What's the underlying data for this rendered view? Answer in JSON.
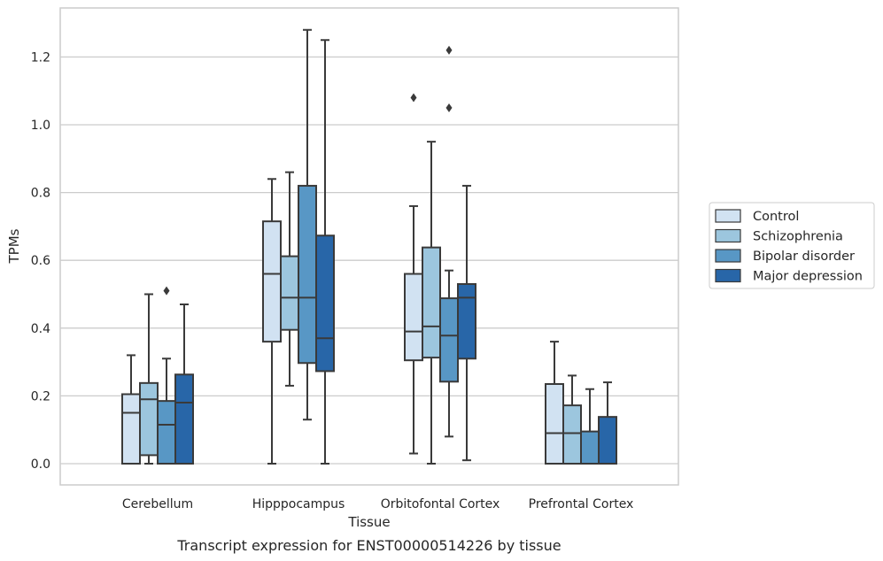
{
  "caption": "Transcript expression for ENST00000514226 by tissue",
  "chart_data": {
    "type": "boxplot",
    "xlabel": "Tissue",
    "ylabel": "TPMs",
    "ylim": [
      -0.06,
      1.35
    ],
    "yticks": [
      "0.0",
      "0.2",
      "0.4",
      "0.6",
      "0.8",
      "1.0",
      "1.2"
    ],
    "grid": true,
    "legend_position": "right",
    "categories": [
      "Cerebellum",
      "Hipppocampus",
      "Orbitofontal Cortex",
      "Prefrontal Cortex"
    ],
    "series": [
      {
        "name": "Control",
        "color": "#d1e2f2",
        "boxes": [
          {
            "whisker_low": 0.0,
            "q1": 0.0,
            "median": 0.15,
            "q3": 0.205,
            "whisker_high": 0.32,
            "outliers": []
          },
          {
            "whisker_low": 0.0,
            "q1": 0.36,
            "median": 0.56,
            "q3": 0.715,
            "whisker_high": 0.84,
            "outliers": []
          },
          {
            "whisker_low": 0.03,
            "q1": 0.305,
            "median": 0.39,
            "q3": 0.56,
            "whisker_high": 0.76,
            "outliers": [
              1.08
            ]
          },
          {
            "whisker_low": 0.0,
            "q1": 0.0,
            "median": 0.09,
            "q3": 0.235,
            "whisker_high": 0.36,
            "outliers": []
          }
        ]
      },
      {
        "name": "Schizophrenia",
        "color": "#9cc6de",
        "boxes": [
          {
            "whisker_low": 0.0,
            "q1": 0.025,
            "median": 0.19,
            "q3": 0.238,
            "whisker_high": 0.5,
            "outliers": []
          },
          {
            "whisker_low": 0.23,
            "q1": 0.395,
            "median": 0.49,
            "q3": 0.612,
            "whisker_high": 0.86,
            "outliers": []
          },
          {
            "whisker_low": 0.0,
            "q1": 0.313,
            "median": 0.405,
            "q3": 0.638,
            "whisker_high": 0.95,
            "outliers": []
          },
          {
            "whisker_low": 0.0,
            "q1": 0.0,
            "median": 0.09,
            "q3": 0.172,
            "whisker_high": 0.26,
            "outliers": []
          }
        ]
      },
      {
        "name": "Bipolar disorder",
        "color": "#5897c5",
        "boxes": [
          {
            "whisker_low": 0.0,
            "q1": 0.0,
            "median": 0.115,
            "q3": 0.185,
            "whisker_high": 0.31,
            "outliers": [
              0.51
            ]
          },
          {
            "whisker_low": 0.13,
            "q1": 0.297,
            "median": 0.49,
            "q3": 0.82,
            "whisker_high": 1.28,
            "outliers": []
          },
          {
            "whisker_low": 0.08,
            "q1": 0.242,
            "median": 0.378,
            "q3": 0.488,
            "whisker_high": 0.57,
            "outliers": [
              1.05,
              1.22
            ]
          },
          {
            "whisker_low": 0.0,
            "q1": 0.0,
            "median": 0.0,
            "q3": 0.095,
            "whisker_high": 0.22,
            "outliers": []
          }
        ]
      },
      {
        "name": "Major depression",
        "color": "#2866a8",
        "boxes": [
          {
            "whisker_low": 0.0,
            "q1": 0.0,
            "median": 0.18,
            "q3": 0.263,
            "whisker_high": 0.47,
            "outliers": []
          },
          {
            "whisker_low": 0.0,
            "q1": 0.273,
            "median": 0.37,
            "q3": 0.673,
            "whisker_high": 1.25,
            "outliers": []
          },
          {
            "whisker_low": 0.01,
            "q1": 0.31,
            "median": 0.49,
            "q3": 0.53,
            "whisker_high": 0.82,
            "outliers": []
          },
          {
            "whisker_low": 0.0,
            "q1": 0.0,
            "median": 0.0,
            "q3": 0.138,
            "whisker_high": 0.24,
            "outliers": []
          }
        ]
      }
    ]
  }
}
